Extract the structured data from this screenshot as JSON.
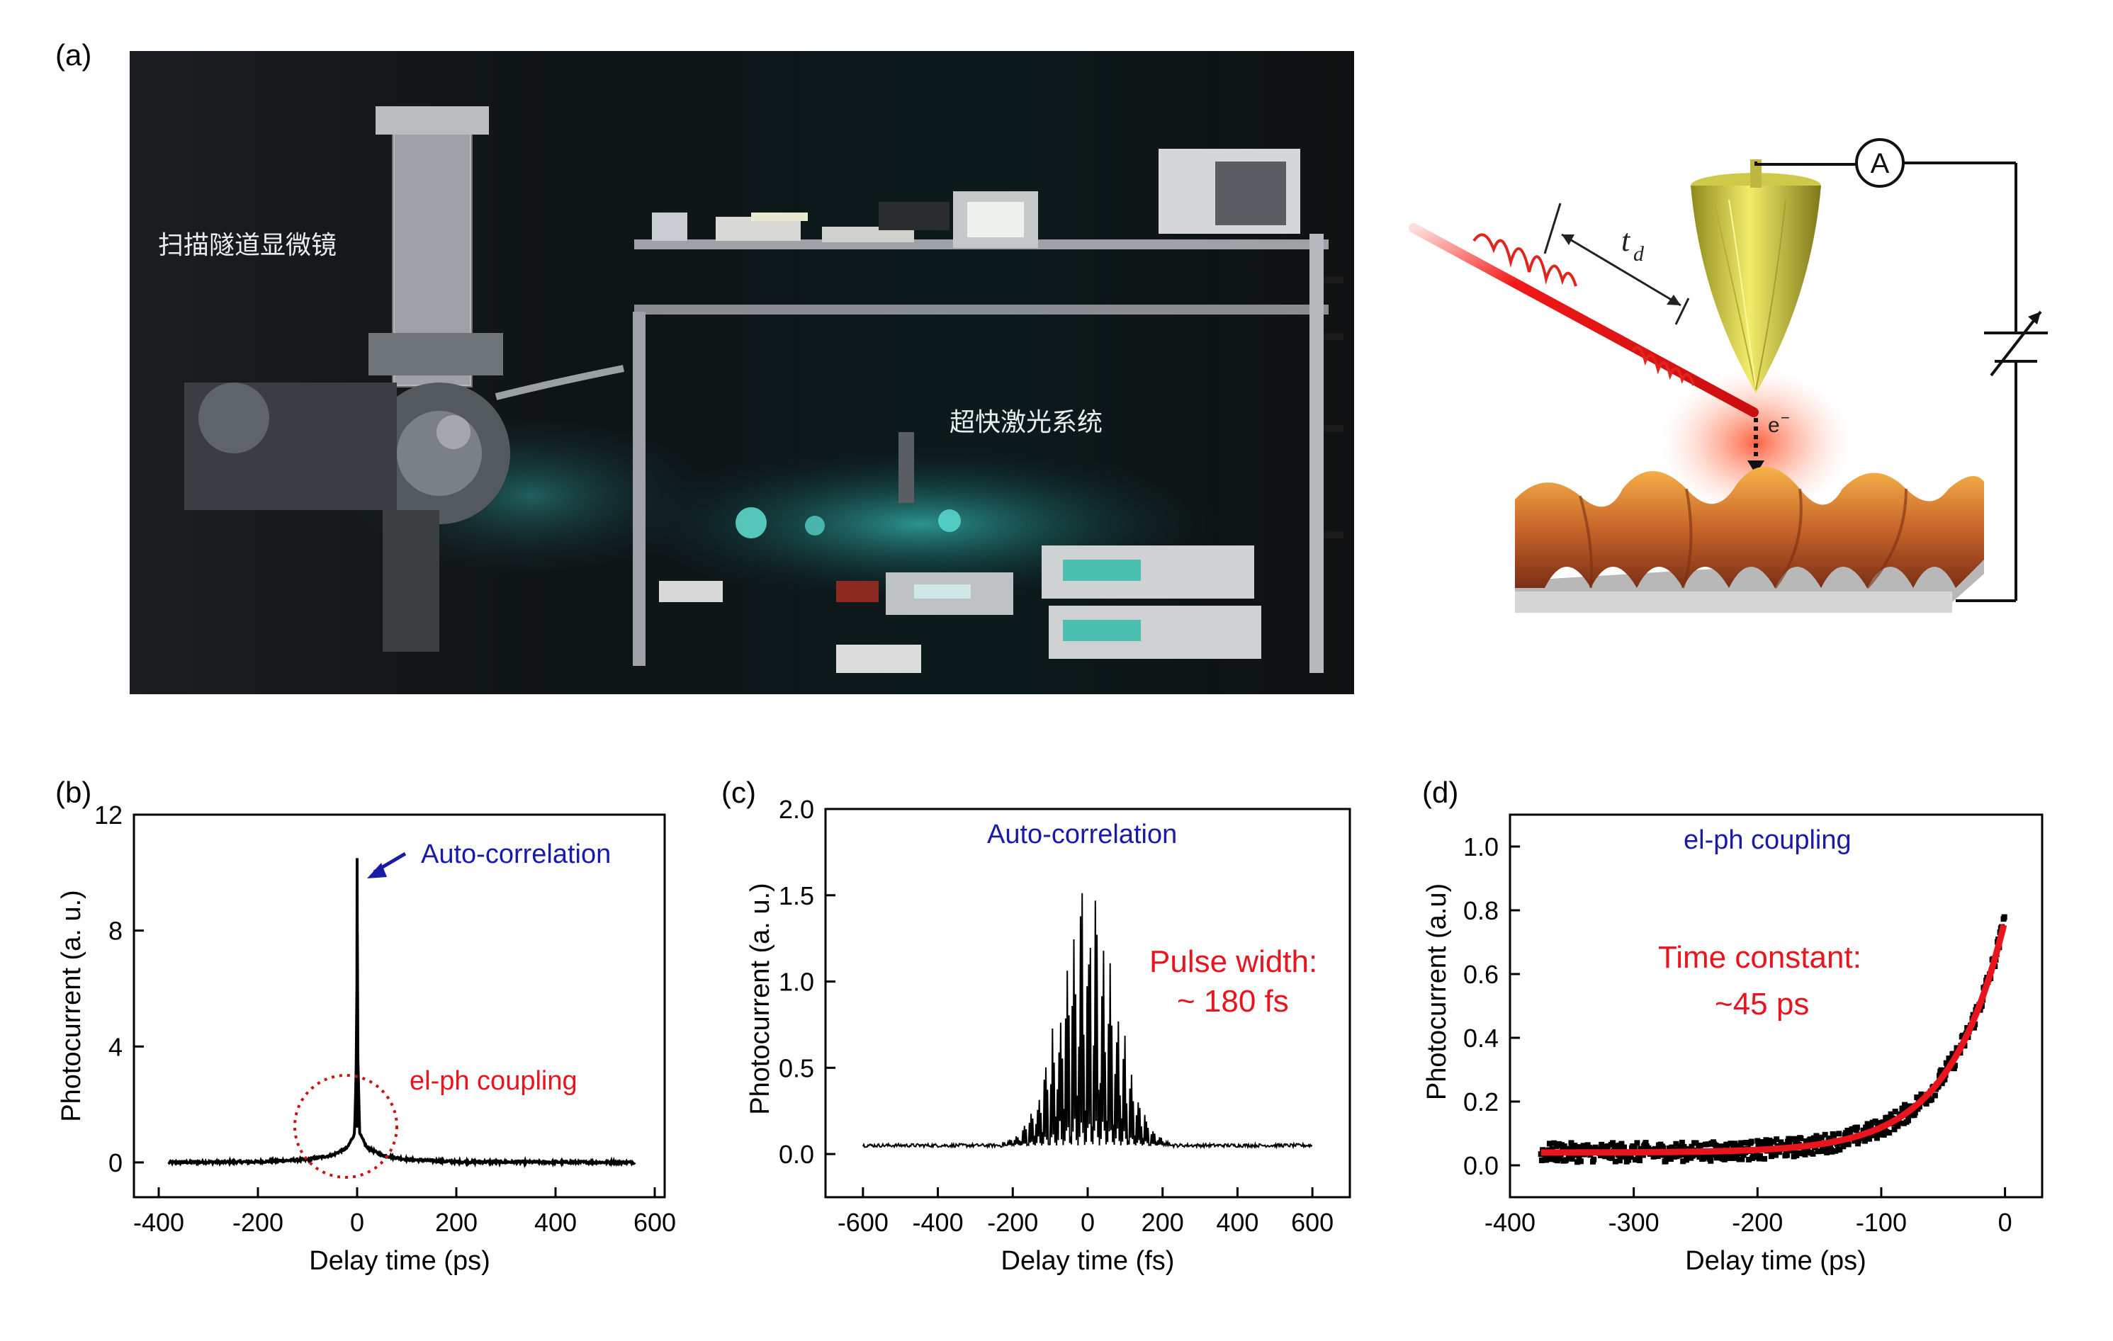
{
  "panels": {
    "a": {
      "label": "(a)",
      "photo_caption_stm": "扫描隧道显微镜",
      "photo_caption_laser": "超快激光系统",
      "schematic": {
        "td_label": "t",
        "td_sub": "d",
        "ammeter": "A",
        "electron": "e",
        "electron_sup": "−"
      }
    },
    "b": {
      "label": "(b)",
      "annotation_1": "Auto-correlation",
      "annotation_2": "el-ph coupling"
    },
    "c": {
      "label": "(c)",
      "annotation_1": "Auto-correlation",
      "annotation_2_line1": "Pulse width:",
      "annotation_2_line2": "~ 180 fs"
    },
    "d": {
      "label": "(d)",
      "annotation_1": "el-ph coupling",
      "annotation_2_line1": "Time constant:",
      "annotation_2_line2": "~45 ps"
    }
  },
  "colors": {
    "blue_text": "#1a1aa8",
    "red_text": "#e8141e",
    "fit_line": "#e8141e",
    "data": "#000000"
  },
  "chart_data": [
    {
      "id": "b",
      "type": "line",
      "xlabel": "Delay time (ps)",
      "ylabel": "Photocurrent (a. u.)",
      "xlim": [
        -450,
        620
      ],
      "ylim": [
        -1.2,
        12
      ],
      "xticks": [
        -400,
        -200,
        0,
        200,
        400,
        600
      ],
      "yticks": [
        0,
        4,
        8,
        12
      ],
      "series": [
        {
          "x": [
            -380,
            -200,
            -100,
            -50,
            -20,
            -5,
            -1,
            0,
            1,
            5,
            20,
            50,
            100,
            200,
            560
          ],
          "y": [
            0.0,
            0.02,
            0.1,
            0.25,
            0.5,
            1.0,
            4.0,
            10.5,
            4.0,
            1.0,
            0.5,
            0.25,
            0.1,
            0.02,
            0.0
          ]
        }
      ]
    },
    {
      "id": "c",
      "type": "line",
      "xlabel": "Delay time (fs)",
      "ylabel": "Photocurrent (a. u.)",
      "xlim": [
        -700,
        700
      ],
      "ylim": [
        -0.25,
        2.0
      ],
      "xticks": [
        -600,
        -400,
        -200,
        0,
        200,
        400,
        600
      ],
      "yticks": [
        0.0,
        0.5,
        1.0,
        1.5,
        2.0
      ],
      "envelope_peak": 1.6,
      "envelope_width_fs": 180,
      "baseline": 0.05,
      "x_range": [
        -600,
        600
      ]
    },
    {
      "id": "d",
      "type": "scatter",
      "xlabel": "Delay time (ps)",
      "ylabel": "Photocurrent (a.u)",
      "xlim": [
        -400,
        30
      ],
      "ylim": [
        -0.1,
        1.1
      ],
      "xticks": [
        -400,
        -300,
        -200,
        -100,
        0
      ],
      "yticks": [
        0.0,
        0.2,
        0.4,
        0.6,
        0.8,
        1.0
      ],
      "fit": {
        "amplitude": 0.73,
        "offset": 0.04,
        "tau_ps": 45
      },
      "x_range": [
        -375,
        0
      ]
    }
  ]
}
